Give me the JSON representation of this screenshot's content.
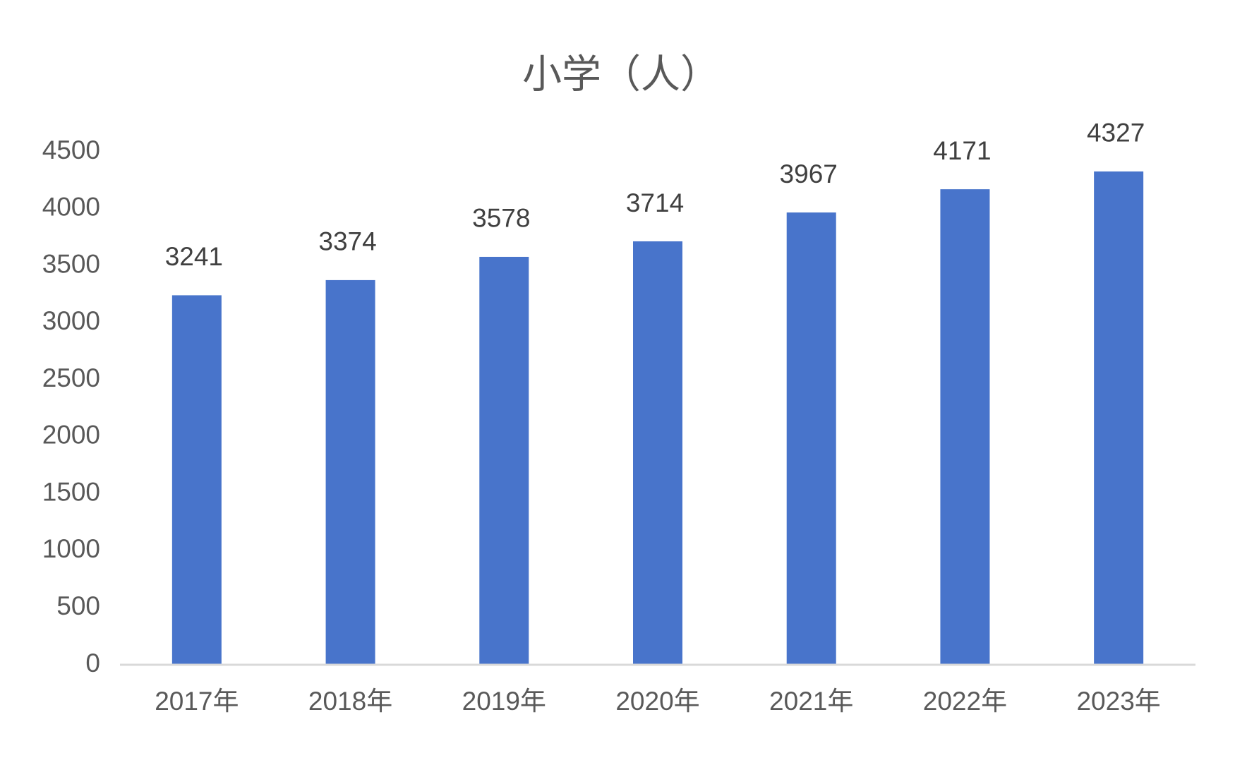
{
  "chart_data": {
    "type": "bar",
    "title": "小学（人）",
    "categories": [
      "2017年",
      "2018年",
      "2019年",
      "2020年",
      "2021年",
      "2022年",
      "2023年"
    ],
    "values": [
      3241,
      3374,
      3578,
      3714,
      3967,
      4171,
      4327
    ],
    "color": "#4874cb",
    "ylim": [
      0,
      4500
    ],
    "yticks": [
      0,
      500,
      1000,
      1500,
      2000,
      2500,
      3000,
      3500,
      4000,
      4500
    ],
    "grid": false
  }
}
